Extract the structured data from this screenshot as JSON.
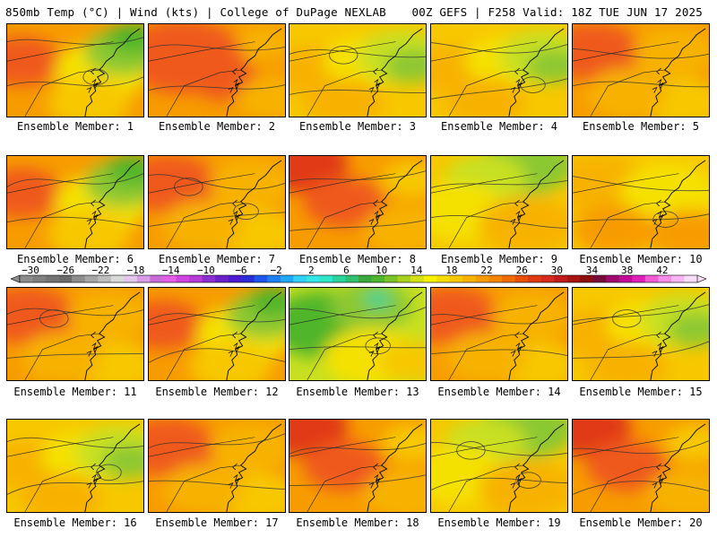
{
  "header": {
    "left": "850mb Temp (°C) | Wind (kts) | College of DuPage NEXLAB",
    "right": "00Z GEFS | F258 Valid: 18Z TUE JUN 17 2025"
  },
  "members": [
    {
      "label": "Ensemble Member: 1",
      "tone": "warm-west-green-east"
    },
    {
      "label": "Ensemble Member: 2",
      "tone": "hot"
    },
    {
      "label": "Ensemble Member: 3",
      "tone": "mild-green-east"
    },
    {
      "label": "Ensemble Member: 4",
      "tone": "mild-green-east"
    },
    {
      "label": "Ensemble Member: 5",
      "tone": "warm"
    },
    {
      "label": "Ensemble Member: 6",
      "tone": "warm-west-green-east"
    },
    {
      "label": "Ensemble Member: 7",
      "tone": "warm"
    },
    {
      "label": "Ensemble Member: 8",
      "tone": "hot-nw"
    },
    {
      "label": "Ensemble Member: 9",
      "tone": "mild-green-north"
    },
    {
      "label": "Ensemble Member: 10",
      "tone": "mild"
    },
    {
      "label": "Ensemble Member: 11",
      "tone": "warm"
    },
    {
      "label": "Ensemble Member: 12",
      "tone": "warm-west-green-east"
    },
    {
      "label": "Ensemble Member: 13",
      "tone": "cool"
    },
    {
      "label": "Ensemble Member: 14",
      "tone": "warm"
    },
    {
      "label": "Ensemble Member: 15",
      "tone": "mild-green-east"
    },
    {
      "label": "Ensemble Member: 16",
      "tone": "mild-green-east"
    },
    {
      "label": "Ensemble Member: 17",
      "tone": "warm"
    },
    {
      "label": "Ensemble Member: 18",
      "tone": "hot-nw"
    },
    {
      "label": "Ensemble Member: 19",
      "tone": "mild-green-north"
    },
    {
      "label": "Ensemble Member: 20",
      "tone": "hot-nw"
    }
  ],
  "colorbar": {
    "tick_labels": [
      "−30",
      "−26",
      "−22",
      "−18",
      "−14",
      "−10",
      "−6",
      "−2",
      "2",
      "6",
      "10",
      "14",
      "18",
      "22",
      "26",
      "30",
      "34",
      "38",
      "42"
    ],
    "colors": [
      "#8c8c8c",
      "#7f7f7f",
      "#737373",
      "#6b6b6b",
      "#8d8d8d",
      "#a5a5a5",
      "#bdbdbd",
      "#d9d9d9",
      "#e3c6ec",
      "#d79ce6",
      "#c86dd8",
      "#e35fe7",
      "#cf43e0",
      "#b53ad6",
      "#8c2fd0",
      "#6a22c8",
      "#4a1bd0",
      "#2b2bd8",
      "#1f55e8",
      "#1e80f0",
      "#21a8f5",
      "#31d0f5",
      "#36e6e6",
      "#2fe6c8",
      "#2bd49c",
      "#30c070",
      "#3aa83c",
      "#4fb52c",
      "#7ac226",
      "#a6d121",
      "#d4e015",
      "#f5f100",
      "#f7dc00",
      "#f7c800",
      "#f7b200",
      "#f79c00",
      "#f38500",
      "#ef6c00",
      "#e94f05",
      "#e03a12",
      "#d62a1c",
      "#c11a1a",
      "#a71414",
      "#8c0e0e",
      "#7a0a3c",
      "#9e0a6e",
      "#c20a96",
      "#e01eb8",
      "#f25ad6",
      "#f58ce6",
      "#f7b6f0",
      "#f9dcf7"
    ]
  }
}
